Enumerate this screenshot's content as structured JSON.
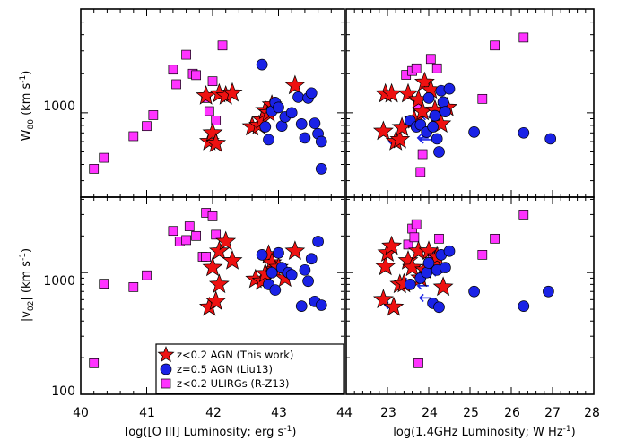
{
  "chart_data": [
    {
      "type": "scatter",
      "panel": "top-left",
      "xlim": [
        40,
        44
      ],
      "ylim_log": [
        300,
        5000
      ],
      "log_y": true,
      "xticks": [],
      "yticks": [
        1000
      ],
      "ylabel": "W80 (km s-1)",
      "series": [
        {
          "name": "z<0.2 ULIRGs (R-Z13)",
          "marker": "square",
          "color": "#ff33ff",
          "points": [
            [
              40.2,
              370
            ],
            [
              40.35,
              450
            ],
            [
              40.8,
              660
            ],
            [
              41.0,
              790
            ],
            [
              41.1,
              960
            ],
            [
              41.4,
              2150
            ],
            [
              41.45,
              1660
            ],
            [
              41.6,
              2800
            ],
            [
              41.7,
              2000
            ],
            [
              41.75,
              1950
            ],
            [
              41.9,
              1300
            ],
            [
              41.95,
              1030
            ],
            [
              42.0,
              1750
            ],
            [
              42.05,
              870
            ],
            [
              42.15,
              3300
            ]
          ]
        },
        {
          "name": "z<0.2 AGN (This work)",
          "marker": "star",
          "color": "#ee1111",
          "points": [
            [
              41.9,
              1350
            ],
            [
              41.95,
              600
            ],
            [
              42.0,
              700
            ],
            [
              42.05,
              580
            ],
            [
              42.1,
              1400
            ],
            [
              42.2,
              1350
            ],
            [
              42.3,
              1420
            ],
            [
              42.6,
              780
            ],
            [
              42.7,
              800
            ],
            [
              42.75,
              880
            ],
            [
              42.8,
              1040
            ],
            [
              42.85,
              1000
            ],
            [
              42.9,
              1150
            ],
            [
              43.25,
              1620
            ]
          ]
        },
        {
          "name": "z=0.5 AGN (Liu13)",
          "marker": "circle",
          "color": "#1a22e6",
          "points": [
            [
              42.75,
              2350
            ],
            [
              42.8,
              780
            ],
            [
              42.85,
              620
            ],
            [
              42.9,
              1030
            ],
            [
              42.95,
              1200
            ],
            [
              43.0,
              1100
            ],
            [
              43.05,
              790
            ],
            [
              43.1,
              930
            ],
            [
              43.2,
              1000
            ],
            [
              43.3,
              1320
            ],
            [
              43.35,
              820
            ],
            [
              43.4,
              640
            ],
            [
              43.45,
              1300
            ],
            [
              43.5,
              1420
            ],
            [
              43.55,
              830
            ],
            [
              43.6,
              690
            ],
            [
              43.65,
              600
            ],
            [
              43.65,
              370
            ]
          ]
        }
      ]
    },
    {
      "type": "scatter",
      "panel": "top-right",
      "xlim": [
        22,
        28
      ],
      "ylim_log": [
        300,
        5000
      ],
      "log_y": true,
      "xticks": [],
      "yticks": [],
      "series": [
        {
          "name": "z<0.2 ULIRGs (R-Z13)",
          "marker": "square",
          "color": "#ff33ff",
          "points": [
            [
              23.45,
              1960
            ],
            [
              23.6,
              2100
            ],
            [
              23.7,
              2200
            ],
            [
              23.75,
              1120
            ],
            [
              23.8,
              350
            ],
            [
              23.85,
              480
            ],
            [
              24.05,
              2600
            ],
            [
              24.2,
              2200
            ],
            [
              25.3,
              1280
            ],
            [
              25.6,
              3300
            ],
            [
              26.3,
              3800
            ]
          ]
        },
        {
          "name": "z<0.2 AGN (This work)",
          "marker": "star",
          "color": "#ee1111",
          "points": [
            [
              22.9,
              720
            ],
            [
              22.95,
              1400
            ],
            [
              23.1,
              1400
            ],
            [
              23.2,
              600
            ],
            [
              23.3,
              620
            ],
            [
              23.35,
              770
            ],
            [
              23.5,
              1400
            ],
            [
              23.65,
              880
            ],
            [
              23.75,
              1260
            ],
            [
              23.85,
              1020
            ],
            [
              23.9,
              1720
            ],
            [
              24.05,
              1500
            ],
            [
              24.15,
              1050
            ],
            [
              24.3,
              820
            ],
            [
              24.45,
              1100
            ]
          ]
        },
        {
          "name": "z=0.5 AGN (Liu13)",
          "marker": "circle",
          "color": "#1a22e6",
          "points": [
            [
              23.55,
              870
            ],
            [
              23.7,
              780
            ],
            [
              23.8,
              810
            ],
            [
              23.95,
              710
            ],
            [
              24.0,
              1300
            ],
            [
              24.1,
              780
            ],
            [
              24.15,
              950
            ],
            [
              24.2,
              630
            ],
            [
              24.25,
              500
            ],
            [
              24.3,
              1480
            ],
            [
              24.35,
              1210
            ],
            [
              24.4,
              1020
            ],
            [
              24.5,
              1530
            ],
            [
              25.1,
              710
            ],
            [
              26.3,
              700
            ],
            [
              26.95,
              630
            ]
          ]
        }
      ],
      "upper_limit_arrows": [
        [
          23.1,
          600
        ],
        [
          23.9,
          940
        ],
        [
          23.75,
          760
        ],
        [
          24.25,
          1020
        ],
        [
          23.8,
          640
        ],
        [
          23.85,
          620
        ]
      ]
    },
    {
      "type": "scatter",
      "panel": "bottom-left",
      "xlim": [
        40,
        44
      ],
      "ylim_log": [
        100,
        5000
      ],
      "log_y": true,
      "xticks": [
        40,
        41,
        42,
        43,
        44
      ],
      "yticks": [
        100,
        1000
      ],
      "xlabel": "log([O III] Luminosity; erg s-1)",
      "ylabel": "|v02| (km s-1)",
      "series": [
        {
          "name": "z<0.2 ULIRGs (R-Z13)",
          "marker": "square",
          "color": "#ff33ff",
          "points": [
            [
              40.2,
              180
            ],
            [
              40.35,
              810
            ],
            [
              40.8,
              760
            ],
            [
              41.0,
              950
            ],
            [
              41.4,
              2200
            ],
            [
              41.5,
              1800
            ],
            [
              41.6,
              1850
            ],
            [
              41.65,
              2400
            ],
            [
              41.75,
              2000
            ],
            [
              41.85,
              1350
            ],
            [
              41.9,
              1350
            ],
            [
              41.9,
              3100
            ],
            [
              42.0,
              2900
            ],
            [
              42.05,
              2050
            ]
          ]
        },
        {
          "name": "z<0.2 AGN (This work)",
          "marker": "star",
          "color": "#ee1111",
          "points": [
            [
              41.95,
              520
            ],
            [
              42.0,
              1100
            ],
            [
              42.05,
              580
            ],
            [
              42.1,
              800
            ],
            [
              42.1,
              1500
            ],
            [
              42.2,
              1800
            ],
            [
              42.3,
              1250
            ],
            [
              42.65,
              880
            ],
            [
              42.75,
              850
            ],
            [
              42.8,
              980
            ],
            [
              42.85,
              1400
            ],
            [
              42.9,
              1200
            ],
            [
              42.95,
              1050
            ],
            [
              43.0,
              1100
            ],
            [
              43.1,
              900
            ],
            [
              43.25,
              1500
            ]
          ]
        },
        {
          "name": "z=0.5 AGN (Liu13)",
          "marker": "circle",
          "color": "#1a22e6",
          "points": [
            [
              42.75,
              1400
            ],
            [
              42.85,
              800
            ],
            [
              42.9,
              1000
            ],
            [
              42.95,
              720
            ],
            [
              43.0,
              1450
            ],
            [
              43.05,
              1100
            ],
            [
              43.15,
              1000
            ],
            [
              43.2,
              960
            ],
            [
              43.35,
              530
            ],
            [
              43.4,
              1050
            ],
            [
              43.45,
              850
            ],
            [
              43.5,
              1300
            ],
            [
              43.55,
              580
            ],
            [
              43.6,
              1800
            ],
            [
              43.65,
              540
            ]
          ]
        }
      ],
      "legend": {
        "placement": "lower-right",
        "entries": [
          "z<0.2 AGN (This work)",
          "z=0.5 AGN (Liu13)",
          "z<0.2 ULIRGs (R-Z13)"
        ]
      }
    },
    {
      "type": "scatter",
      "panel": "bottom-right",
      "xlim": [
        22,
        28
      ],
      "ylim_log": [
        100,
        5000
      ],
      "log_y": true,
      "xticks": [
        23,
        24,
        25,
        26,
        27,
        28
      ],
      "yticks": [],
      "xlabel": "log(1.4GHz Luminosity; W Hz-1)",
      "series": [
        {
          "name": "z<0.2 ULIRGs (R-Z13)",
          "marker": "square",
          "color": "#ff33ff",
          "points": [
            [
              23.5,
              1700
            ],
            [
              23.6,
              2300
            ],
            [
              23.65,
              1950
            ],
            [
              23.7,
              2500
            ],
            [
              23.75,
              180
            ],
            [
              24.1,
              1350
            ],
            [
              24.25,
              1900
            ],
            [
              25.3,
              1400
            ],
            [
              25.6,
              1900
            ],
            [
              26.3,
              3000
            ]
          ]
        },
        {
          "name": "z<0.2 AGN (This work)",
          "marker": "star",
          "color": "#ee1111",
          "points": [
            [
              22.9,
              600
            ],
            [
              22.95,
              1120
            ],
            [
              23.0,
              1450
            ],
            [
              23.1,
              1650
            ],
            [
              23.15,
              520
            ],
            [
              23.3,
              800
            ],
            [
              23.4,
              810
            ],
            [
              23.5,
              1250
            ],
            [
              23.6,
              1100
            ],
            [
              23.75,
              1500
            ],
            [
              23.8,
              900
            ],
            [
              23.9,
              1050
            ],
            [
              24.0,
              1500
            ],
            [
              24.15,
              1250
            ],
            [
              24.2,
              1350
            ],
            [
              24.35,
              760
            ]
          ]
        },
        {
          "name": "z=0.5 AGN (Liu13)",
          "marker": "circle",
          "color": "#1a22e6",
          "points": [
            [
              23.55,
              800
            ],
            [
              23.8,
              900
            ],
            [
              23.95,
              1000
            ],
            [
              24.0,
              1200
            ],
            [
              24.1,
              560
            ],
            [
              24.2,
              1050
            ],
            [
              24.25,
              520
            ],
            [
              24.3,
              1400
            ],
            [
              24.4,
              1100
            ],
            [
              24.5,
              1500
            ],
            [
              25.1,
              700
            ],
            [
              26.3,
              530
            ],
            [
              26.9,
              700
            ]
          ]
        }
      ],
      "upper_limit_arrows": [
        [
          23.0,
          540
        ],
        [
          23.45,
          840
        ],
        [
          23.8,
          780
        ],
        [
          23.85,
          620
        ],
        [
          24.15,
          1000
        ]
      ]
    }
  ],
  "legend_labels": {
    "agn": "z<0.2 AGN (This work)",
    "liu": "z=0.5 AGN (Liu13)",
    "ulirg": "z<0.2 ULIRGs (R-Z13)"
  },
  "axis_labels": {
    "bottom_left_x": "log([O III] Luminosity; erg s",
    "bottom_left_x_sup": "-1",
    "bottom_left_x_end": ")",
    "bottom_right_x": "log(1.4GHz Luminosity; W Hz",
    "bottom_right_x_sup": "-1",
    "bottom_right_x_end": ")",
    "top_y_main": "W",
    "top_y_sub": "80",
    "top_y_unit": " (km s",
    "top_y_sup": "-1",
    "top_y_end": ")",
    "bottom_y_main": "|v",
    "bottom_y_sub": "02",
    "bottom_y_unit": "| (km s",
    "bottom_y_sup": "-1",
    "bottom_y_end": ")"
  },
  "tick_labels": {
    "bottom_left": [
      "40",
      "41",
      "42",
      "43",
      "44"
    ],
    "bottom_right": [
      "23",
      "24",
      "25",
      "26",
      "27",
      "28"
    ],
    "top_y": [
      "1000"
    ],
    "bottom_y": [
      "100",
      "1000"
    ]
  }
}
